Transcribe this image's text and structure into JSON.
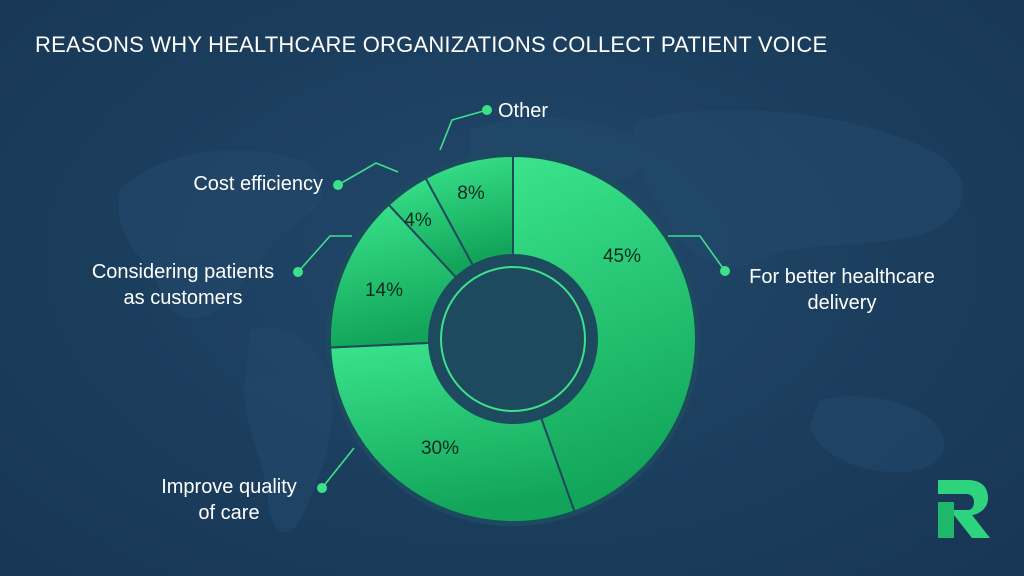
{
  "title": "REASONS WHY HEALTHCARE ORGANIZATIONS COLLECT PATIENT VOICE",
  "chart_data": {
    "type": "pie",
    "variant": "donut",
    "title": "REASONS WHY HEALTHCARE ORGANIZATIONS COLLECT PATIENT VOICE",
    "categories": [
      "For better healthcare delivery",
      "Improve quality of care",
      "Considering patients as customers",
      "Cost efficiency",
      "Other"
    ],
    "values": [
      45,
      30,
      14,
      4,
      8
    ],
    "value_labels": [
      "45%",
      "30%",
      "14%",
      "4%",
      "8%"
    ],
    "label_lines": [
      [
        "For better healthcare",
        "delivery"
      ],
      [
        "Improve quality",
        "of care"
      ],
      [
        "Considering patients",
        "as customers"
      ],
      [
        "Cost efficiency"
      ],
      [
        "Other"
      ]
    ],
    "legend": "none (external callout labels)"
  },
  "colors": {
    "background": "#1b3d5c",
    "slice_fill": "#2ed47d",
    "slice_fill_dark": "#12a55a",
    "ring_stroke": "#1d4a5e",
    "leader_line": "#3ee08a",
    "text": "#ffffff"
  },
  "logo": {
    "icon": "r-logo-icon"
  }
}
